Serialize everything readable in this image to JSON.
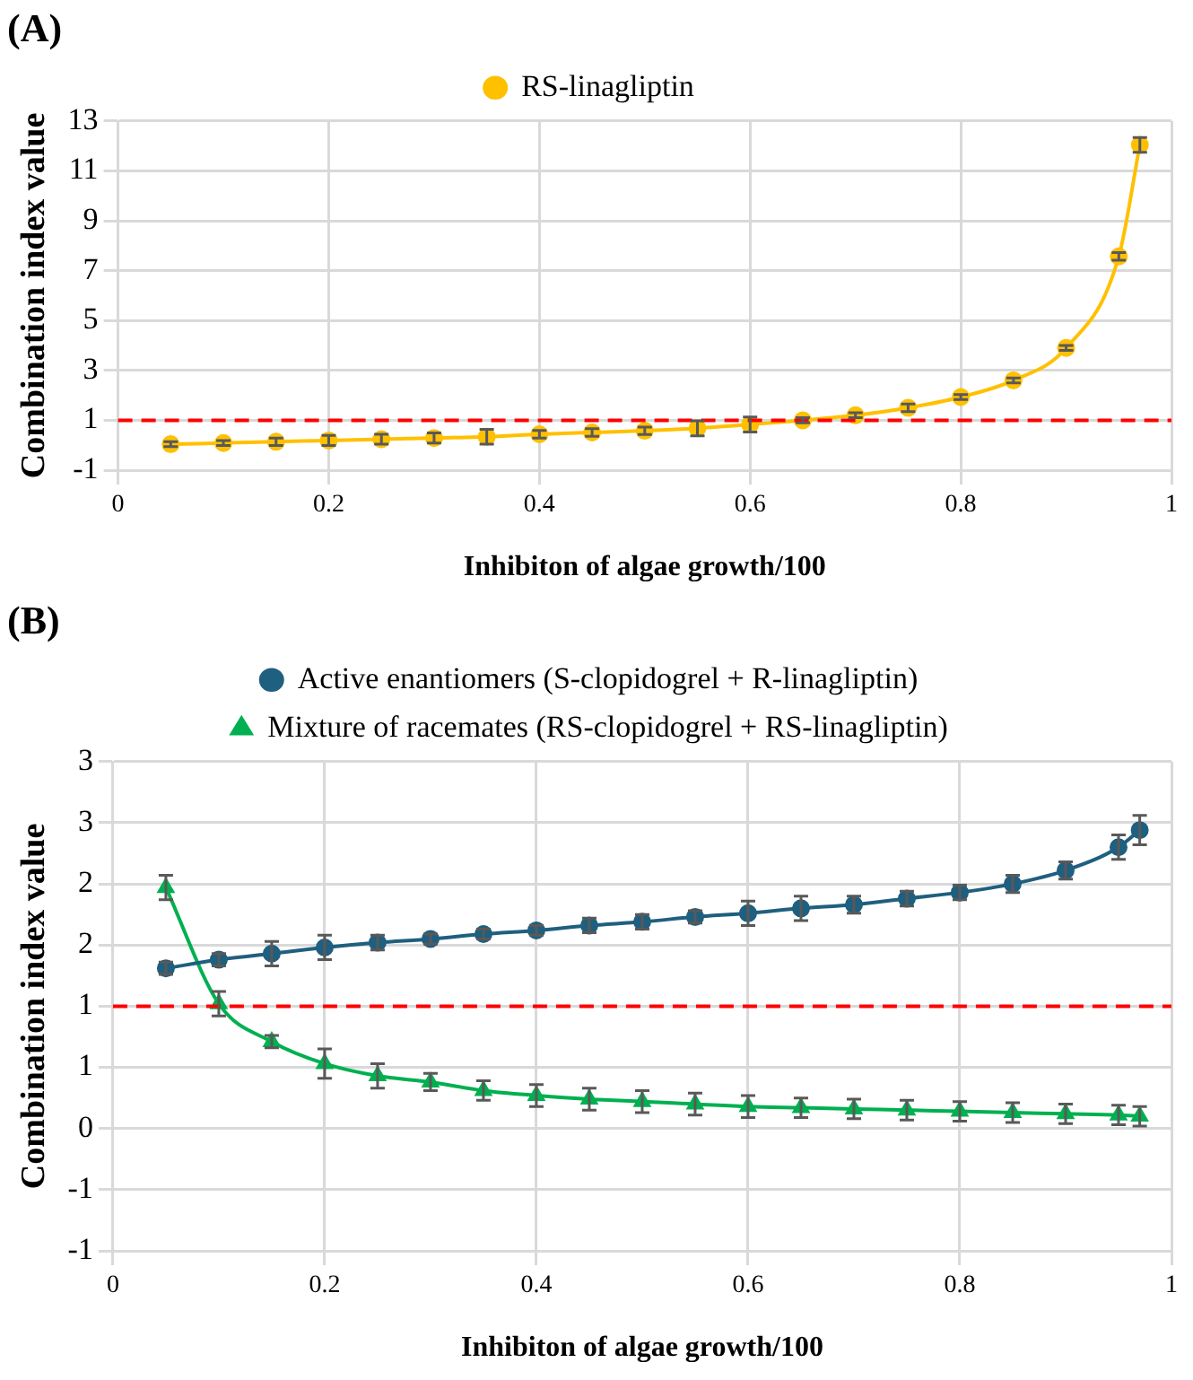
{
  "chart_data": [
    {
      "type": "line",
      "title": "(A)",
      "xlabel": "Inhibiton of algae growth/100",
      "ylabel": "Combination index value",
      "legend": "top",
      "grid": true,
      "marker": "circle",
      "line_style": "solid",
      "xlim": [
        0,
        1
      ],
      "xticks": [
        0,
        0.2,
        0.4,
        0.6,
        0.8,
        1
      ],
      "ylim": [
        -1,
        13
      ],
      "yticks": [
        -1,
        1,
        3,
        5,
        7,
        9,
        11,
        13
      ],
      "x": [
        0.05,
        0.1,
        0.15,
        0.2,
        0.25,
        0.3,
        0.35,
        0.4,
        0.45,
        0.5,
        0.55,
        0.6,
        0.65,
        0.7,
        0.75,
        0.8,
        0.85,
        0.9,
        0.95,
        0.97
      ],
      "series": [
        {
          "name": "RS-linagliptin",
          "color": "#ffc000",
          "values": [
            0.04,
            0.09,
            0.14,
            0.19,
            0.24,
            0.29,
            0.34,
            0.44,
            0.51,
            0.58,
            0.68,
            0.83,
            1.0,
            1.2,
            1.5,
            1.93,
            2.6,
            3.9,
            7.57,
            12.04
          ],
          "errors": [
            0.1,
            0.1,
            0.15,
            0.2,
            0.2,
            0.2,
            0.3,
            0.15,
            0.15,
            0.15,
            0.3,
            0.3,
            0.1,
            0.1,
            0.15,
            0.1,
            0.1,
            0.1,
            0.15,
            0.3
          ]
        }
      ],
      "ref_lines": [
        {
          "axis": "y",
          "value": 1,
          "color": "#ff0000",
          "line_style": "dashed"
        }
      ]
    },
    {
      "type": "line",
      "title": "(B)",
      "xlabel": "Inhibiton of algae growth/100",
      "ylabel": "Combination index value",
      "legend": "top",
      "grid": true,
      "line_style": "solid",
      "xlim": [
        0,
        1
      ],
      "xticks": [
        0,
        0.2,
        0.4,
        0.6,
        0.8,
        1
      ],
      "ylim": [
        -1,
        3
      ],
      "yticks": [
        {
          "value": -1,
          "label": "-1"
        },
        {
          "value": -0.5,
          "label": "-1"
        },
        {
          "value": 0,
          "label": "0"
        },
        {
          "value": 0.5,
          "label": "1"
        },
        {
          "value": 1,
          "label": "1"
        },
        {
          "value": 1.5,
          "label": "2"
        },
        {
          "value": 2,
          "label": "2"
        },
        {
          "value": 2.5,
          "label": "3"
        },
        {
          "value": 3,
          "label": "3"
        }
      ],
      "x": [
        0.05,
        0.1,
        0.15,
        0.2,
        0.25,
        0.3,
        0.35,
        0.4,
        0.45,
        0.5,
        0.55,
        0.6,
        0.65,
        0.7,
        0.75,
        0.8,
        0.85,
        0.9,
        0.95,
        0.97
      ],
      "series": [
        {
          "name": "Active enantiomers (S-clopidogrel + R-linagliptin)",
          "color": "#1f5f7f",
          "marker": "circle",
          "values": [
            1.31,
            1.38,
            1.43,
            1.48,
            1.52,
            1.55,
            1.59,
            1.62,
            1.66,
            1.69,
            1.73,
            1.76,
            1.8,
            1.83,
            1.88,
            1.93,
            2.0,
            2.11,
            2.3,
            2.44
          ],
          "errors": [
            0.05,
            0.05,
            0.1,
            0.1,
            0.06,
            0.04,
            0.04,
            0.04,
            0.06,
            0.06,
            0.05,
            0.1,
            0.1,
            0.07,
            0.06,
            0.06,
            0.07,
            0.07,
            0.1,
            0.12
          ]
        },
        {
          "name": "Mixture of racemates (RS-clopidogrel + RS-linagliptin)",
          "color": "#00b050",
          "marker": "triangle",
          "values": [
            1.97,
            1.02,
            0.71,
            0.53,
            0.43,
            0.38,
            0.31,
            0.27,
            0.24,
            0.22,
            0.2,
            0.18,
            0.17,
            0.16,
            0.15,
            0.14,
            0.13,
            0.12,
            0.11,
            0.1
          ],
          "errors": [
            0.1,
            0.1,
            0.05,
            0.12,
            0.1,
            0.07,
            0.08,
            0.09,
            0.09,
            0.09,
            0.09,
            0.09,
            0.08,
            0.08,
            0.08,
            0.08,
            0.08,
            0.08,
            0.08,
            0.08
          ]
        }
      ],
      "ref_lines": [
        {
          "axis": "y",
          "value": 1,
          "color": "#ff0000",
          "line_style": "dashed"
        }
      ]
    }
  ]
}
